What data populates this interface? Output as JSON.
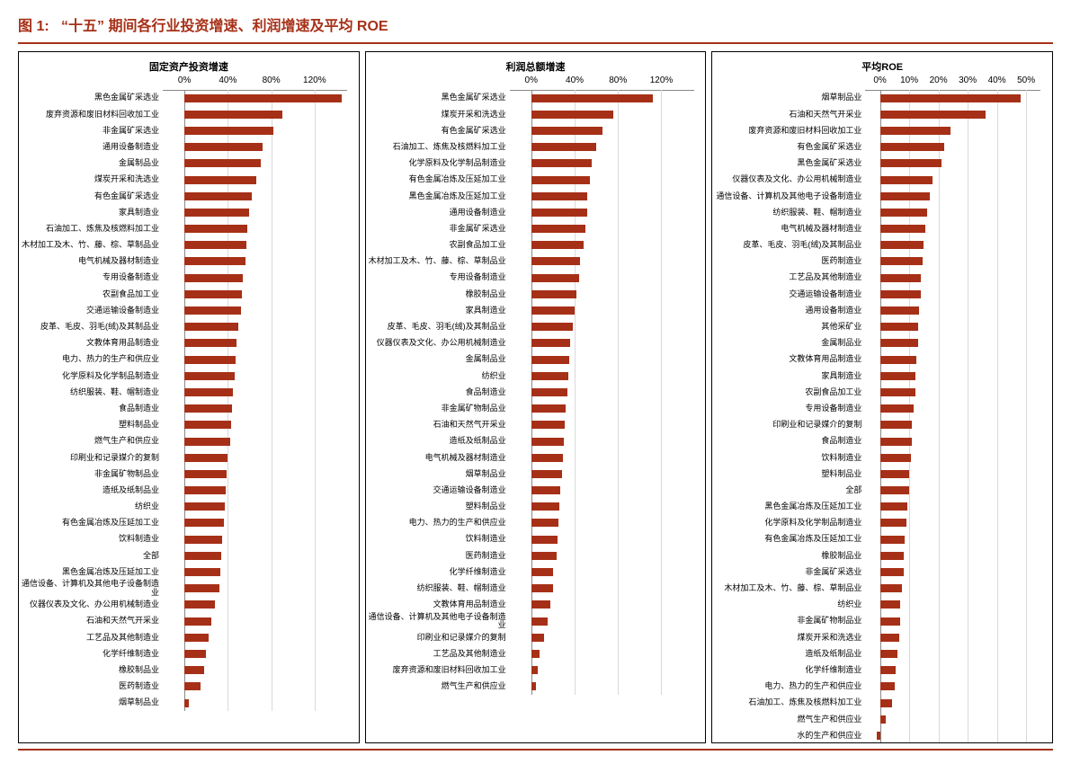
{
  "figure": {
    "prefix": "图 1:",
    "title": "“十五” 期间各行业投资增速、利润增速及平均 ROE"
  },
  "colors": {
    "bar": "#a63017",
    "grid": "#d9d9d9",
    "axis": "#888888",
    "border": "#000000",
    "title": "#a63017"
  },
  "charts": [
    {
      "title": "固定资产投资增速",
      "label_width": 160,
      "xlim": [
        -20,
        150
      ],
      "ticks": [
        0,
        40,
        80,
        120
      ],
      "tick_labels": [
        "0%",
        "40%",
        "80%",
        "120%"
      ],
      "rows": [
        {
          "label": "黑色金属矿采选业",
          "value": 145
        },
        {
          "label": "废弃资源和废旧材料回收加工业",
          "value": 90
        },
        {
          "label": "非金属矿采选业",
          "value": 82
        },
        {
          "label": "通用设备制造业",
          "value": 72
        },
        {
          "label": "金属制品业",
          "value": 70
        },
        {
          "label": "煤炭开采和洗选业",
          "value": 66
        },
        {
          "label": "有色金属矿采选业",
          "value": 62
        },
        {
          "label": "家具制造业",
          "value": 60
        },
        {
          "label": "石油加工、炼焦及核燃料加工业",
          "value": 58
        },
        {
          "label": "木材加工及木、竹、藤、棕、草制品业",
          "value": 57
        },
        {
          "label": "电气机械及器材制造业",
          "value": 56
        },
        {
          "label": "专用设备制造业",
          "value": 54
        },
        {
          "label": "农副食品加工业",
          "value": 53
        },
        {
          "label": "交通运输设备制造业",
          "value": 52
        },
        {
          "label": "皮革、毛皮、羽毛(绒)及其制品业",
          "value": 50
        },
        {
          "label": "文教体育用品制造业",
          "value": 48
        },
        {
          "label": "电力、热力的生产和供应业",
          "value": 47
        },
        {
          "label": "化学原料及化学制品制造业",
          "value": 46
        },
        {
          "label": "纺织服装、鞋、帽制造业",
          "value": 45
        },
        {
          "label": "食品制造业",
          "value": 44
        },
        {
          "label": "塑料制品业",
          "value": 43
        },
        {
          "label": "燃气生产和供应业",
          "value": 42
        },
        {
          "label": "印刷业和记录媒介的复制",
          "value": 40
        },
        {
          "label": "非金属矿物制品业",
          "value": 39
        },
        {
          "label": "造纸及纸制品业",
          "value": 38
        },
        {
          "label": "纺织业",
          "value": 37
        },
        {
          "label": "有色金属冶炼及压延加工业",
          "value": 36
        },
        {
          "label": "饮料制造业",
          "value": 35
        },
        {
          "label": "全部",
          "value": 34
        },
        {
          "label": "黑色金属冶炼及压延加工业",
          "value": 33
        },
        {
          "label": "通信设备、计算机及其他电子设备制造业",
          "value": 32
        },
        {
          "label": "仪器仪表及文化、办公用机械制造业",
          "value": 28
        },
        {
          "label": "石油和天然气开采业",
          "value": 25
        },
        {
          "label": "工艺品及其他制造业",
          "value": 22
        },
        {
          "label": "化学纤维制造业",
          "value": 20
        },
        {
          "label": "橡胶制品业",
          "value": 18
        },
        {
          "label": "医药制造业",
          "value": 15
        },
        {
          "label": "烟草制品业",
          "value": 4
        }
      ]
    },
    {
      "title": "利润总额增速",
      "label_width": 160,
      "xlim": [
        -20,
        150
      ],
      "ticks": [
        0,
        40,
        80,
        120
      ],
      "tick_labels": [
        "0%",
        "40%",
        "80%",
        "120%"
      ],
      "rows": [
        {
          "label": "黑色金属矿采选业",
          "value": 112
        },
        {
          "label": "煤炭开采和洗选业",
          "value": 76
        },
        {
          "label": "有色金属矿采选业",
          "value": 66
        },
        {
          "label": "石油加工、炼焦及核燃料加工业",
          "value": 60
        },
        {
          "label": "化学原料及化学制品制造业",
          "value": 56
        },
        {
          "label": "有色金属冶炼及压延加工业",
          "value": 54
        },
        {
          "label": "黑色金属冶炼及压延加工业",
          "value": 52
        },
        {
          "label": "通用设备制造业",
          "value": 52
        },
        {
          "label": "非金属矿采选业",
          "value": 50
        },
        {
          "label": "农副食品加工业",
          "value": 48
        },
        {
          "label": "木材加工及木、竹、藤、棕、草制品业",
          "value": 45
        },
        {
          "label": "专用设备制造业",
          "value": 44
        },
        {
          "label": "橡胶制品业",
          "value": 42
        },
        {
          "label": "家具制造业",
          "value": 40
        },
        {
          "label": "皮革、毛皮、羽毛(绒)及其制品业",
          "value": 38
        },
        {
          "label": "仪器仪表及文化、办公用机械制造业",
          "value": 36
        },
        {
          "label": "金属制品业",
          "value": 35
        },
        {
          "label": "纺织业",
          "value": 34
        },
        {
          "label": "食品制造业",
          "value": 33
        },
        {
          "label": "非金属矿物制品业",
          "value": 32
        },
        {
          "label": "石油和天然气开采业",
          "value": 31
        },
        {
          "label": "造纸及纸制品业",
          "value": 30
        },
        {
          "label": "电气机械及器材制造业",
          "value": 29
        },
        {
          "label": "烟草制品业",
          "value": 28
        },
        {
          "label": "交通运输设备制造业",
          "value": 27
        },
        {
          "label": "塑料制品业",
          "value": 26
        },
        {
          "label": "电力、热力的生产和供应业",
          "value": 25
        },
        {
          "label": "饮料制造业",
          "value": 24
        },
        {
          "label": "医药制造业",
          "value": 23
        },
        {
          "label": "化学纤维制造业",
          "value": 20
        },
        {
          "label": "纺织服装、鞋、帽制造业",
          "value": 20
        },
        {
          "label": "文教体育用品制造业",
          "value": 18
        },
        {
          "label": "通信设备、计算机及其他电子设备制造业",
          "value": 15
        },
        {
          "label": "印刷业和记录媒介的复制",
          "value": 12
        },
        {
          "label": "工艺品及其他制造业",
          "value": 8
        },
        {
          "label": "废弃资源和废旧材料回收加工业",
          "value": 6
        },
        {
          "label": "燃气生产和供应业",
          "value": 4
        }
      ]
    },
    {
      "title": "平均ROE",
      "label_width": 170,
      "xlim": [
        -5,
        55
      ],
      "ticks": [
        0,
        10,
        20,
        30,
        40,
        50
      ],
      "tick_labels": [
        "0%",
        "10%",
        "20%",
        "30%",
        "40%",
        "50%"
      ],
      "rows": [
        {
          "label": "烟草制品业",
          "value": 48
        },
        {
          "label": "石油和天然气开采业",
          "value": 36
        },
        {
          "label": "废弃资源和废旧材料回收加工业",
          "value": 24
        },
        {
          "label": "有色金属矿采选业",
          "value": 22
        },
        {
          "label": "黑色金属矿采选业",
          "value": 21
        },
        {
          "label": "仪器仪表及文化、办公用机械制造业",
          "value": 18
        },
        {
          "label": "通信设备、计算机及其他电子设备制造业",
          "value": 17
        },
        {
          "label": "纺织服装、鞋、帽制造业",
          "value": 16
        },
        {
          "label": "电气机械及器材制造业",
          "value": 15.5
        },
        {
          "label": "皮革、毛皮、羽毛(绒)及其制品业",
          "value": 15
        },
        {
          "label": "医药制造业",
          "value": 14.5
        },
        {
          "label": "工艺品及其他制造业",
          "value": 14
        },
        {
          "label": "交通运输设备制造业",
          "value": 14
        },
        {
          "label": "通用设备制造业",
          "value": 13.5
        },
        {
          "label": "其他采矿业",
          "value": 13
        },
        {
          "label": "金属制品业",
          "value": 13
        },
        {
          "label": "文教体育用品制造业",
          "value": 12.5
        },
        {
          "label": "家具制造业",
          "value": 12
        },
        {
          "label": "农副食品加工业",
          "value": 12
        },
        {
          "label": "专用设备制造业",
          "value": 11.5
        },
        {
          "label": "印刷业和记录媒介的复制",
          "value": 11
        },
        {
          "label": "食品制造业",
          "value": 11
        },
        {
          "label": "饮料制造业",
          "value": 10.5
        },
        {
          "label": "塑料制品业",
          "value": 10
        },
        {
          "label": "全部",
          "value": 10
        },
        {
          "label": "黑色金属冶炼及压延加工业",
          "value": 9.5
        },
        {
          "label": "化学原料及化学制品制造业",
          "value": 9
        },
        {
          "label": "有色金属冶炼及压延加工业",
          "value": 8.5
        },
        {
          "label": "橡胶制品业",
          "value": 8
        },
        {
          "label": "非金属矿采选业",
          "value": 8
        },
        {
          "label": "木材加工及木、竹、藤、棕、草制品业",
          "value": 7.5
        },
        {
          "label": "纺织业",
          "value": 7
        },
        {
          "label": "非金属矿物制品业",
          "value": 7
        },
        {
          "label": "煤炭开采和洗选业",
          "value": 6.5
        },
        {
          "label": "造纸及纸制品业",
          "value": 6
        },
        {
          "label": "化学纤维制造业",
          "value": 5.5
        },
        {
          "label": "电力、热力的生产和供应业",
          "value": 5
        },
        {
          "label": "石油加工、炼焦及核燃料加工业",
          "value": 4
        },
        {
          "label": "燃气生产和供应业",
          "value": 2
        },
        {
          "label": "水的生产和供应业",
          "value": -1
        }
      ]
    }
  ]
}
